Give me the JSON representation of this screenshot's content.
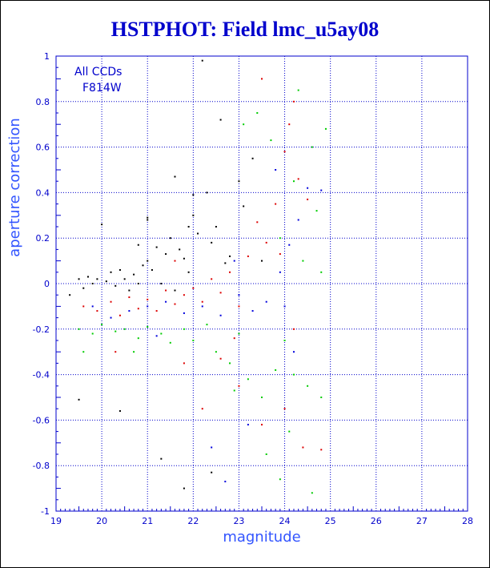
{
  "chart_data": {
    "type": "scatter",
    "title": "HSTPHOT: Field lmc_u5ay08",
    "xlabel": "magnitude",
    "ylabel": "aperture correction",
    "xlim": [
      19,
      28
    ],
    "ylim": [
      -1,
      1
    ],
    "xticks": [
      "19",
      "20",
      "21",
      "22",
      "23",
      "24",
      "25",
      "26",
      "27",
      "28"
    ],
    "yticks": [
      "-1",
      "-0.8",
      "-0.6",
      "-0.4",
      "-0.2",
      "0",
      "0.2",
      "0.4",
      "0.6",
      "0.8",
      "1"
    ],
    "grid": true,
    "annotations": [
      "All CCDs",
      "F814W"
    ],
    "colors": {
      "axis": "#0000cc",
      "grid": "#0000cc",
      "title": "#0000cc"
    },
    "series": [
      {
        "color": "#000000",
        "points": [
          [
            19.3,
            -0.05
          ],
          [
            19.5,
            0.02
          ],
          [
            19.6,
            -0.02
          ],
          [
            19.7,
            0.03
          ],
          [
            19.8,
            0.0
          ],
          [
            19.9,
            0.02
          ],
          [
            20.0,
            0.26
          ],
          [
            20.1,
            0.01
          ],
          [
            20.2,
            0.05
          ],
          [
            20.3,
            -0.01
          ],
          [
            20.4,
            0.06
          ],
          [
            20.5,
            0.02
          ],
          [
            20.6,
            -0.03
          ],
          [
            20.7,
            0.04
          ],
          [
            20.8,
            0.0
          ],
          [
            20.9,
            0.08
          ],
          [
            21.0,
            0.1
          ],
          [
            21.0,
            0.29
          ],
          [
            21.1,
            0.06
          ],
          [
            21.2,
            0.16
          ],
          [
            21.3,
            0.0
          ],
          [
            21.4,
            0.13
          ],
          [
            21.5,
            0.2
          ],
          [
            21.6,
            -0.03
          ],
          [
            21.7,
            0.15
          ],
          [
            21.8,
            0.11
          ],
          [
            21.9,
            0.05
          ],
          [
            22.0,
            0.3
          ],
          [
            22.1,
            0.22
          ],
          [
            22.2,
            0.98
          ],
          [
            22.3,
            0.4
          ],
          [
            22.4,
            0.18
          ],
          [
            22.5,
            0.25
          ],
          [
            22.6,
            0.72
          ],
          [
            22.7,
            0.09
          ],
          [
            22.8,
            0.12
          ],
          [
            23.0,
            0.45
          ],
          [
            23.1,
            0.34
          ],
          [
            23.3,
            0.55
          ],
          [
            23.5,
            0.1
          ],
          [
            21.6,
            0.47
          ],
          [
            20.4,
            -0.56
          ],
          [
            19.5,
            -0.51
          ],
          [
            21.3,
            -0.77
          ],
          [
            21.8,
            -0.9
          ],
          [
            22.4,
            -0.83
          ],
          [
            21.0,
            0.28
          ],
          [
            20.8,
            0.17
          ],
          [
            22.0,
            0.39
          ],
          [
            21.9,
            0.25
          ]
        ]
      },
      {
        "color": "#dd0000",
        "points": [
          [
            19.6,
            -0.1
          ],
          [
            19.9,
            -0.12
          ],
          [
            20.2,
            -0.08
          ],
          [
            20.4,
            -0.14
          ],
          [
            20.6,
            -0.06
          ],
          [
            20.8,
            -0.11
          ],
          [
            21.0,
            -0.07
          ],
          [
            21.2,
            -0.12
          ],
          [
            21.4,
            -0.03
          ],
          [
            21.6,
            -0.09
          ],
          [
            21.8,
            -0.05
          ],
          [
            22.0,
            -0.02
          ],
          [
            22.2,
            -0.08
          ],
          [
            22.4,
            0.02
          ],
          [
            22.6,
            -0.04
          ],
          [
            22.8,
            0.05
          ],
          [
            23.0,
            -0.1
          ],
          [
            23.2,
            0.12
          ],
          [
            23.4,
            0.27
          ],
          [
            23.6,
            0.18
          ],
          [
            23.8,
            0.35
          ],
          [
            24.0,
            0.58
          ],
          [
            24.1,
            0.7
          ],
          [
            24.2,
            0.8
          ],
          [
            24.3,
            0.46
          ],
          [
            24.5,
            0.37
          ],
          [
            23.5,
            0.9
          ],
          [
            22.6,
            -0.33
          ],
          [
            23.0,
            -0.45
          ],
          [
            23.5,
            -0.62
          ],
          [
            24.0,
            -0.55
          ],
          [
            24.4,
            -0.72
          ],
          [
            24.8,
            -0.73
          ],
          [
            21.8,
            -0.35
          ],
          [
            22.2,
            -0.55
          ],
          [
            20.3,
            -0.3
          ],
          [
            21.6,
            0.1
          ],
          [
            23.9,
            0.13
          ],
          [
            24.2,
            -0.2
          ],
          [
            22.9,
            -0.24
          ]
        ]
      },
      {
        "color": "#0000dd",
        "points": [
          [
            19.8,
            -0.1
          ],
          [
            20.2,
            -0.15
          ],
          [
            20.6,
            -0.12
          ],
          [
            21.0,
            -0.1
          ],
          [
            21.4,
            -0.08
          ],
          [
            21.8,
            -0.13
          ],
          [
            22.2,
            -0.1
          ],
          [
            22.6,
            -0.14
          ],
          [
            23.0,
            -0.05
          ],
          [
            23.3,
            -0.12
          ],
          [
            23.6,
            -0.08
          ],
          [
            23.9,
            0.05
          ],
          [
            24.1,
            0.17
          ],
          [
            24.3,
            0.28
          ],
          [
            24.5,
            0.42
          ],
          [
            24.8,
            0.41
          ],
          [
            22.4,
            -0.72
          ],
          [
            22.7,
            -0.87
          ],
          [
            23.2,
            -0.62
          ],
          [
            24.2,
            -0.3
          ],
          [
            23.8,
            0.5
          ],
          [
            21.2,
            -0.23
          ],
          [
            24.0,
            -0.1
          ],
          [
            22.9,
            0.1
          ]
        ]
      },
      {
        "color": "#00cc00",
        "points": [
          [
            19.5,
            -0.2
          ],
          [
            19.8,
            -0.22
          ],
          [
            20.0,
            -0.18
          ],
          [
            20.3,
            -0.21
          ],
          [
            20.5,
            -0.2
          ],
          [
            20.8,
            -0.24
          ],
          [
            21.0,
            -0.19
          ],
          [
            21.3,
            -0.22
          ],
          [
            21.5,
            -0.26
          ],
          [
            21.8,
            -0.2
          ],
          [
            22.0,
            -0.25
          ],
          [
            22.3,
            -0.18
          ],
          [
            22.5,
            -0.3
          ],
          [
            22.8,
            -0.35
          ],
          [
            23.0,
            -0.22
          ],
          [
            23.2,
            -0.42
          ],
          [
            23.5,
            -0.5
          ],
          [
            23.8,
            -0.38
          ],
          [
            24.0,
            -0.25
          ],
          [
            24.2,
            -0.4
          ],
          [
            24.5,
            -0.45
          ],
          [
            24.8,
            -0.5
          ],
          [
            23.1,
            0.7
          ],
          [
            23.4,
            0.75
          ],
          [
            23.7,
            0.63
          ],
          [
            24.3,
            0.85
          ],
          [
            24.6,
            0.6
          ],
          [
            24.9,
            0.68
          ],
          [
            24.4,
            0.1
          ],
          [
            23.9,
            0.2
          ],
          [
            24.7,
            0.32
          ],
          [
            24.6,
            -0.92
          ],
          [
            23.6,
            -0.75
          ],
          [
            24.1,
            -0.65
          ],
          [
            19.6,
            -0.3
          ],
          [
            20.7,
            -0.3
          ],
          [
            22.9,
            -0.47
          ],
          [
            23.9,
            -0.86
          ],
          [
            24.8,
            0.05
          ],
          [
            24.2,
            0.45
          ]
        ]
      }
    ]
  }
}
